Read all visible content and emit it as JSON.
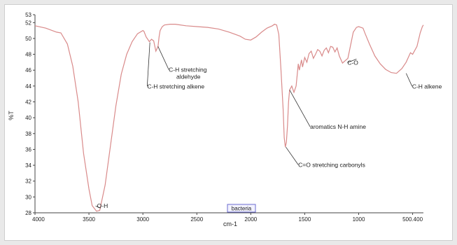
{
  "chart_data": {
    "type": "line",
    "xlabel": "cm-1",
    "ylabel": "%T",
    "xlim": [
      4000,
      400
    ],
    "ylim": [
      28,
      53
    ],
    "x_reversed": true,
    "x_ticks": [
      "4000",
      "3500",
      "3000",
      "2500",
      "2000",
      "1500",
      "1000",
      "500.400"
    ],
    "x_tick_values": [
      4000,
      3500,
      3000,
      2500,
      2000,
      1500,
      1000,
      500
    ],
    "y_ticks": [
      "28",
      "30",
      "32",
      "34",
      "36",
      "38",
      "40",
      "42",
      "44",
      "46",
      "48",
      "50",
      "52",
      "53"
    ],
    "line_color": "#d98a8a",
    "series": [
      {
        "x": [
          4000,
          3900,
          3800,
          3760,
          3700,
          3650,
          3600,
          3550,
          3500,
          3470,
          3430,
          3400,
          3350,
          3300,
          3250,
          3200,
          3150,
          3100,
          3050,
          3000,
          2990,
          2970,
          2940,
          2920,
          2900,
          2880,
          2860,
          2850,
          2840,
          2820,
          2800,
          2750,
          2700,
          2600,
          2500,
          2400,
          2300,
          2200,
          2100,
          2050,
          2000,
          1950,
          1900,
          1850,
          1800,
          1780,
          1760,
          1740,
          1720,
          1700,
          1690,
          1680,
          1670,
          1660,
          1650,
          1640,
          1620,
          1600,
          1580,
          1560,
          1550,
          1530,
          1520,
          1500,
          1480,
          1460,
          1440,
          1420,
          1400,
          1380,
          1360,
          1340,
          1320,
          1300,
          1280,
          1260,
          1240,
          1220,
          1200,
          1180,
          1150,
          1100,
          1050,
          1020,
          1000,
          960,
          940,
          900,
          850,
          800,
          750,
          700,
          650,
          600,
          560,
          520,
          500,
          460,
          430,
          410,
          400
        ],
        "y": [
          51.6,
          51.3,
          50.8,
          50.7,
          49.3,
          46.5,
          42.0,
          35.5,
          31.0,
          28.9,
          28.2,
          28.3,
          31.5,
          36.5,
          41.5,
          45.5,
          48.0,
          49.6,
          50.6,
          51.0,
          50.9,
          50.2,
          49.6,
          49.9,
          49.7,
          48.4,
          49.0,
          50.2,
          51.0,
          51.5,
          51.7,
          51.8,
          51.8,
          51.6,
          51.5,
          51.4,
          51.2,
          50.8,
          50.3,
          49.9,
          49.8,
          50.2,
          50.8,
          51.3,
          51.6,
          51.8,
          51.7,
          50.5,
          46.0,
          41.0,
          37.5,
          36.3,
          36.9,
          39.0,
          42.0,
          43.5,
          44.0,
          43.2,
          44.0,
          46.8,
          46.0,
          47.3,
          46.4,
          47.6,
          47.0,
          48.1,
          48.4,
          47.5,
          48.0,
          48.6,
          48.4,
          47.8,
          48.5,
          48.8,
          48.2,
          49.0,
          48.9,
          48.3,
          48.8,
          47.8,
          46.9,
          47.5,
          50.8,
          51.4,
          51.5,
          51.3,
          50.6,
          49.3,
          47.8,
          46.8,
          46.1,
          45.7,
          45.6,
          46.2,
          47.0,
          48.2,
          48.0,
          49.0,
          50.7,
          51.5,
          51.7
        ]
      }
    ],
    "annotations": [
      {
        "text": "O-H"
      },
      {
        "text": "C-H stretching"
      },
      {
        "text": "aldehyde"
      },
      {
        "text": "C-H stretching alkene"
      },
      {
        "text": "aromatics N-H amine"
      },
      {
        "text": "C=O stretching carbonyls"
      },
      {
        "text": "C-O"
      },
      {
        "text": "C-H alkene"
      }
    ],
    "legend_box": "bacteria",
    "grid": false
  }
}
